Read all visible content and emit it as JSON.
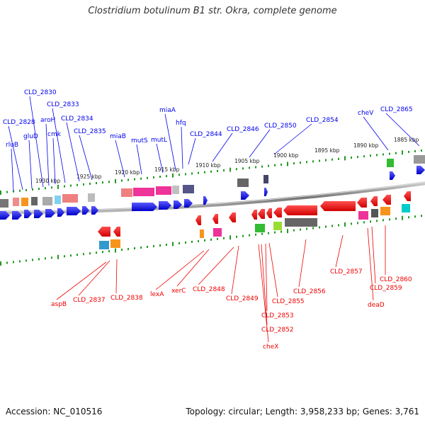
{
  "title": "Clostridium botulinum B1 str. Okra, complete genome",
  "footer": {
    "accession": "Accession: NC_010516",
    "topology": "Topology: circular; Length: 3,958,233 bp; Genes: 3,761"
  },
  "ruler": {
    "ticks": [
      "1930 kbp",
      "1925 kbp",
      "1920 kbp",
      "1915 kbp",
      "1910 kbp",
      "1905 kbp",
      "1900 kbp",
      "1895 kbp",
      "1890 kbp",
      "1885 kbp"
    ]
  },
  "labels_top": [
    "rluB",
    "CLD_2828",
    "gluD",
    "CLD_2830",
    "aroH",
    "cmk",
    "CLD_2833",
    "CLD_2834",
    "CLD_2835",
    "miaB",
    "mutS",
    "mutL",
    "miaA",
    "hfq",
    "CLD_2844",
    "CLD_2846",
    "CLD_2850",
    "CLD_2854",
    "cheV",
    "CLD_2865"
  ],
  "labels_bottom": [
    "aspB",
    "CLD_2837",
    "CLD_2838",
    "lexA",
    "xerC",
    "CLD_2848",
    "CLD_2849",
    "CLD_2852",
    "CLD_2853",
    "cheX",
    "CLD_2855",
    "CLD_2856",
    "CLD_2857",
    "deaD",
    "CLD_2859",
    "CLD_2860"
  ],
  "colors": {
    "forward_strand": "#0000ee",
    "reverse_strand": "#ee0000",
    "backbone": "#888888",
    "ruler_ticks": "#229922"
  }
}
